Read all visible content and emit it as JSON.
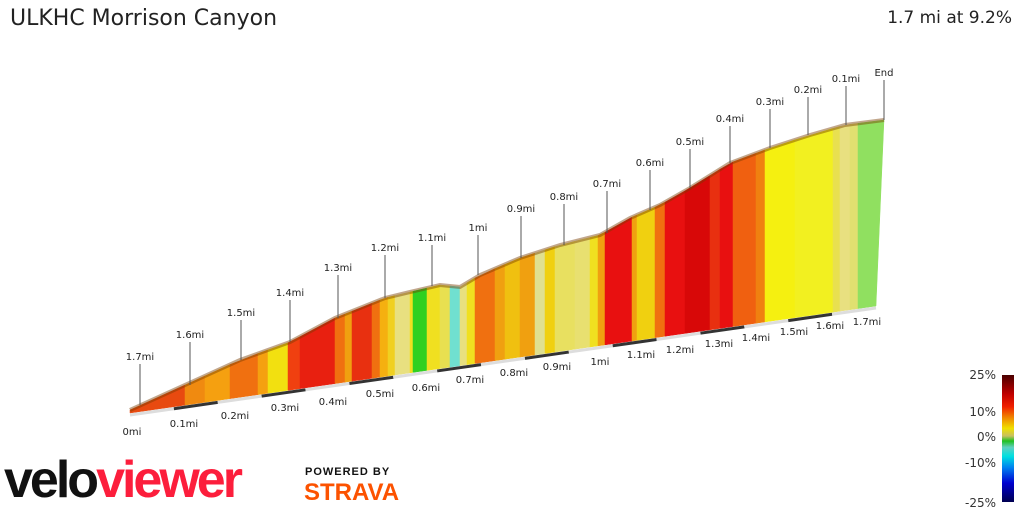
{
  "title": "ULKHC Morrison Canyon",
  "summary": "1.7 mi at 9.2%",
  "top_labels": [
    "1.7mi",
    "1.6mi",
    "1.5mi",
    "1.4mi",
    "1.3mi",
    "1.2mi",
    "1.1mi",
    "1mi",
    "0.9mi",
    "0.8mi",
    "0.7mi",
    "0.6mi",
    "0.5mi",
    "0.4mi",
    "0.3mi",
    "0.2mi",
    "0.1mi",
    "End"
  ],
  "bottom_labels": [
    "0mi",
    "0.1mi",
    "0.2mi",
    "0.3mi",
    "0.4mi",
    "0.5mi",
    "0.6mi",
    "0.7mi",
    "0.8mi",
    "0.9mi",
    "1mi",
    "1.1mi",
    "1.2mi",
    "1.3mi",
    "1.4mi",
    "1.5mi",
    "1.6mi",
    "1.7mi"
  ],
  "legend": {
    "labels": [
      "25%",
      "10%",
      "0%",
      "-10%",
      "-25%"
    ]
  },
  "logo": {
    "part1": "velo",
    "part2": "viewer"
  },
  "powered_by": "POWERED BY",
  "strava": "STRAVA",
  "colors": {
    "velo": "#111111",
    "viewer": "#fc1e3c",
    "strava": "#fc5200"
  }
}
